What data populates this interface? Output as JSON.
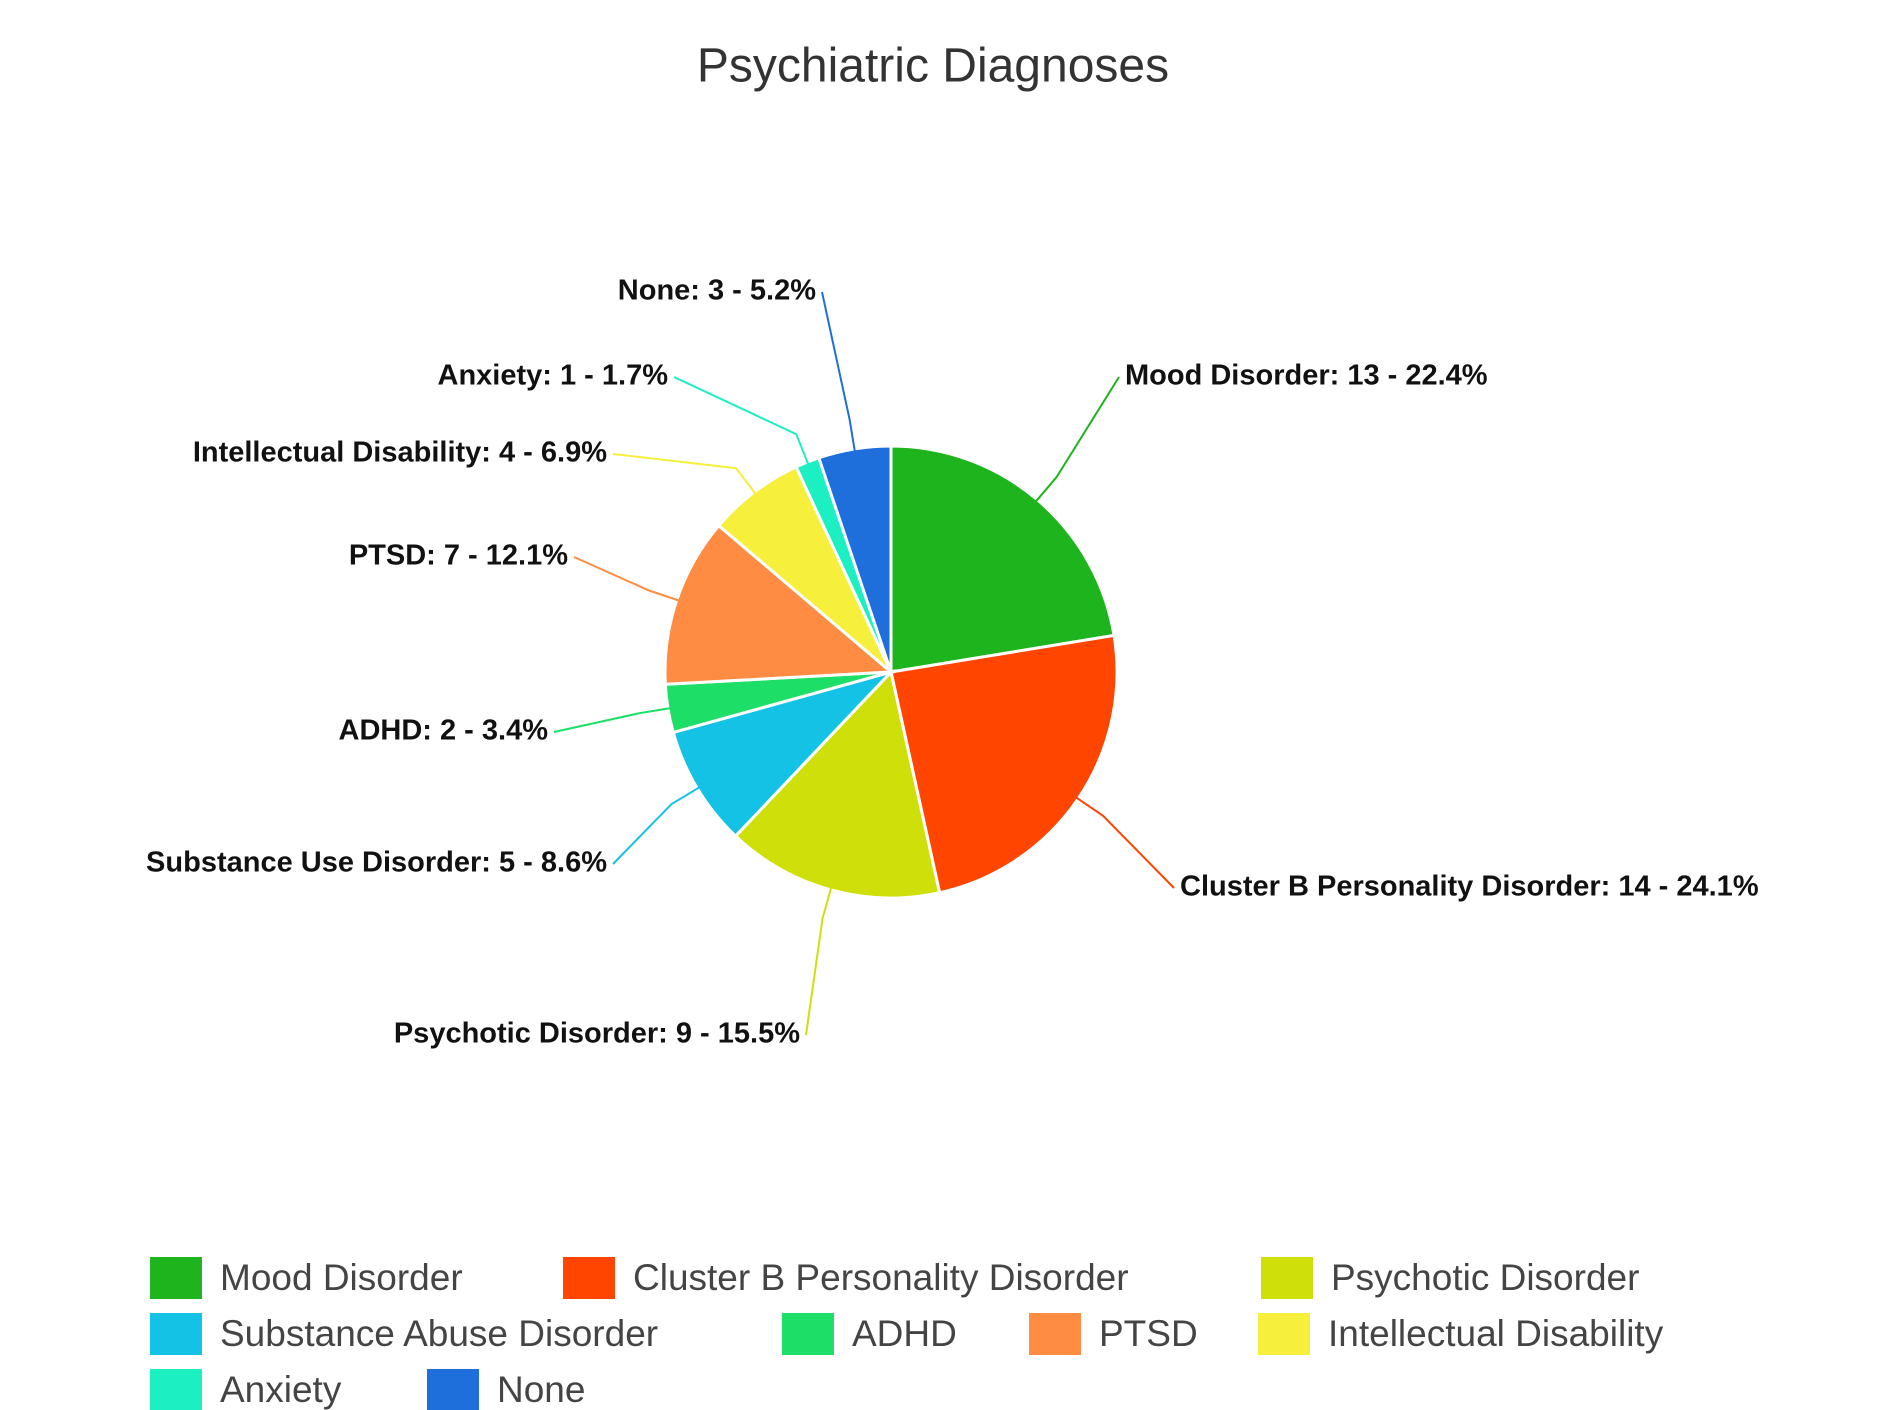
{
  "chart_data": {
    "type": "pie",
    "title": "Psychiatric Diagnoses",
    "categories": [
      "Mood Disorder",
      "Cluster B Personality Disorder",
      "Psychotic Disorder",
      "Substance Abuse Disorder",
      "ADHD",
      "PTSD",
      "Intellectual Disability",
      "Anxiety",
      "None"
    ],
    "values": [
      13,
      14,
      9,
      5,
      2,
      7,
      4,
      1,
      3
    ],
    "value_labels": [
      "Mood Disorder: 13 - 22.4%",
      "Cluster B Personality Disorder: 14 - 24.1%",
      "Psychotic Disorder: 9 - 15.5%",
      "Substance Use Disorder: 5 - 8.6%",
      "ADHD: 2 - 3.4%",
      "PTSD: 7 - 12.1%",
      "Intellectual Disability: 4 - 6.9%",
      "Anxiety: 1 - 1.7%",
      "None: 3 - 5.2%"
    ],
    "colors": [
      "#1db41d",
      "#ff4500",
      "#cfdf0a",
      "#14c2e6",
      "#1ddf68",
      "#ff8c42",
      "#f6f03c",
      "#1cefc2",
      "#1e6fdc"
    ],
    "legend": "bottom"
  }
}
